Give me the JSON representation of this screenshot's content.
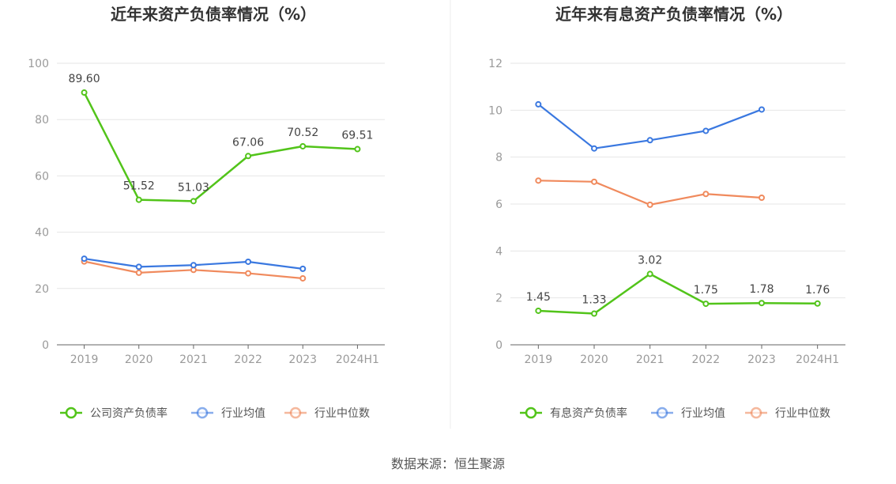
{
  "source": "数据来源：恒生聚源",
  "chart_data": [
    {
      "type": "line",
      "title": "近年来资产负债率情况（%）",
      "categories": [
        "2019",
        "2020",
        "2021",
        "2022",
        "2023",
        "2024H1"
      ],
      "ylim": [
        0,
        100
      ],
      "yticks": [
        0,
        20,
        40,
        60,
        80,
        100
      ],
      "grid": true,
      "legend_position": "bottom",
      "series": [
        {
          "name": "公司资产负债率",
          "color": "#52c41a",
          "values": [
            89.6,
            51.52,
            51.03,
            67.06,
            70.52,
            69.51
          ],
          "labels": [
            "89.60",
            "51.52",
            "51.03",
            "67.06",
            "70.52",
            "69.51"
          ],
          "label_position": "above"
        },
        {
          "name": "行业均值",
          "color": "#3a78e0",
          "values": [
            30.6,
            27.7,
            28.3,
            29.5,
            27.0,
            null
          ]
        },
        {
          "name": "行业中位数",
          "color": "#f08a5d",
          "values": [
            29.6,
            25.6,
            26.6,
            25.4,
            23.6,
            null
          ]
        }
      ]
    },
    {
      "type": "line",
      "title": "近年来有息资产负债率情况（%）",
      "categories": [
        "2019",
        "2020",
        "2021",
        "2022",
        "2023",
        "2024H1"
      ],
      "ylim": [
        0,
        12
      ],
      "yticks": [
        0,
        2,
        4,
        6,
        8,
        10,
        12
      ],
      "grid": true,
      "legend_position": "bottom",
      "series": [
        {
          "name": "有息资产负债率",
          "color": "#52c41a",
          "values": [
            1.45,
            1.33,
            3.02,
            1.75,
            1.78,
            1.76
          ],
          "labels": [
            "1.45",
            "1.33",
            "3.02",
            "1.75",
            "1.78",
            "1.76"
          ],
          "label_position": "above"
        },
        {
          "name": "行业均值",
          "color": "#3a78e0",
          "values": [
            10.25,
            8.37,
            8.72,
            9.12,
            10.03,
            null
          ]
        },
        {
          "name": "行业中位数",
          "color": "#f08a5d",
          "values": [
            7.0,
            6.95,
            5.97,
            6.43,
            6.27,
            null
          ]
        }
      ]
    }
  ]
}
